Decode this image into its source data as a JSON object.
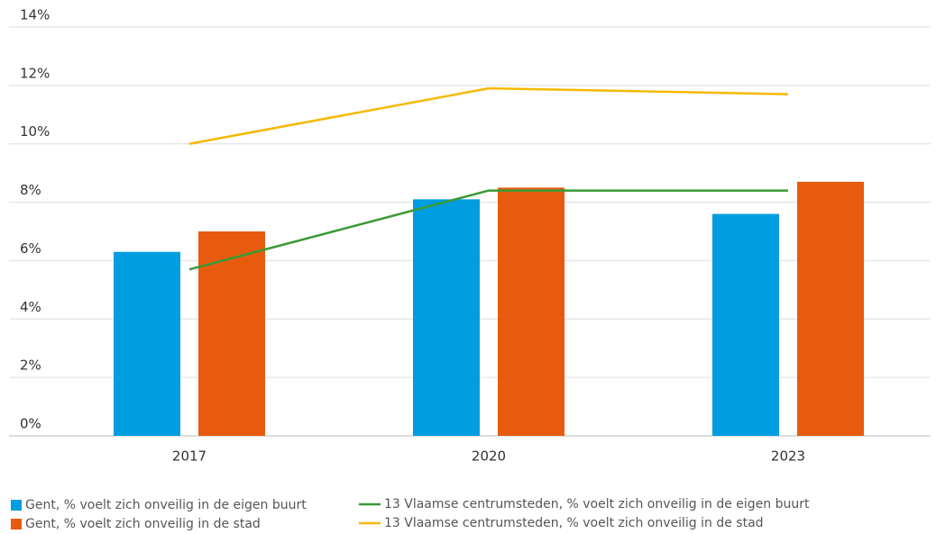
{
  "chart_data": {
    "type": "combo",
    "categories": [
      "2017",
      "2020",
      "2023"
    ],
    "series": [
      {
        "name": "Gent, % voelt zich onveilig in de eigen buurt",
        "type": "bar",
        "color": "#009de0",
        "values": [
          6.3,
          8.1,
          7.6
        ]
      },
      {
        "name": "Gent, % voelt zich onveilig in de stad",
        "type": "bar",
        "color": "#e85b0e",
        "values": [
          7.0,
          8.5,
          8.7
        ]
      },
      {
        "name": "13 Vlaamse centrumsteden, % voelt zich onveilig in de eigen buurt",
        "type": "line",
        "color": "#3a9a35",
        "values": [
          5.7,
          8.4,
          8.4
        ]
      },
      {
        "name": "13 Vlaamse centrumsteden, % voelt zich onveilig in de stad",
        "type": "line",
        "color": "#f5b800",
        "values": [
          10.0,
          11.9,
          11.7
        ]
      }
    ],
    "ylim": [
      0,
      14
    ],
    "yticks": [
      {
        "value": 0,
        "label": "0%"
      },
      {
        "value": 2,
        "label": "2%"
      },
      {
        "value": 4,
        "label": "4%"
      },
      {
        "value": 6,
        "label": "6%"
      },
      {
        "value": 8,
        "label": "8%"
      },
      {
        "value": 10,
        "label": "10%"
      },
      {
        "value": 12,
        "label": "12%"
      },
      {
        "value": 14,
        "label": "14%"
      }
    ],
    "grid": true,
    "legend": "bottom"
  }
}
